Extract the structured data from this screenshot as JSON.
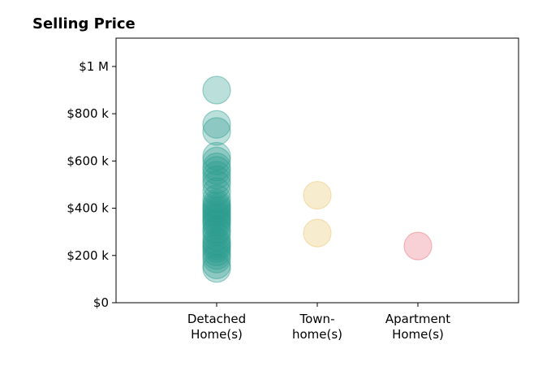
{
  "chart_data": {
    "type": "scatter",
    "title": "Selling Price",
    "xlabel": "",
    "ylabel": "",
    "categories": [
      [
        "Detached",
        "Home(s)"
      ],
      [
        "Town-",
        "home(s)"
      ],
      [
        "Apartment",
        "Home(s)"
      ]
    ],
    "xlim": [
      0,
      4
    ],
    "ylim": [
      0,
      1120000
    ],
    "yticks": [
      {
        "value": 0,
        "label": "$0"
      },
      {
        "value": 200000,
        "label": "$200 k"
      },
      {
        "value": 400000,
        "label": "$400 k"
      },
      {
        "value": 600000,
        "label": "$600 k"
      },
      {
        "value": 800000,
        "label": "$800 k"
      },
      {
        "value": 1000000,
        "label": "$1 M"
      }
    ],
    "grid": false,
    "series": [
      {
        "category_index": 0,
        "color": "#2a9d8f",
        "values": [
          900000,
          755000,
          725000,
          620000,
          600000,
          575000,
          560000,
          540000,
          520000,
          500000,
          470000,
          440000,
          420000,
          410000,
          400000,
          390000,
          380000,
          370000,
          360000,
          350000,
          340000,
          330000,
          310000,
          300000,
          280000,
          260000,
          250000,
          240000,
          230000,
          215000,
          200000,
          185000,
          160000,
          145000
        ]
      },
      {
        "category_index": 1,
        "color": "#e9c46a",
        "values": [
          455000,
          295000
        ]
      },
      {
        "category_index": 2,
        "color": "#e76f7b",
        "values": [
          240000
        ]
      }
    ]
  }
}
